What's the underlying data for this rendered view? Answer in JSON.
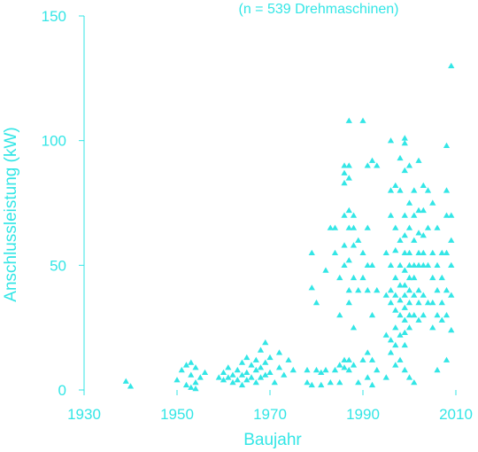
{
  "chart_data": {
    "type": "scatter",
    "subtitle": "(n = 539 Drehmaschinen)",
    "xlabel": "Baujahr",
    "ylabel": "Anschlussleistung (kW)",
    "xlim": [
      1930,
      2010
    ],
    "ylim": [
      0,
      150
    ],
    "xticks": [
      1930,
      1950,
      1970,
      1990,
      2010
    ],
    "yticks": [
      0,
      50,
      100,
      150
    ],
    "grid": false,
    "marker": "triangle",
    "color": "#33e6e6",
    "series": [
      {
        "points": [
          [
            1939,
            3.5
          ],
          [
            1940,
            1.5
          ],
          [
            1950,
            4
          ],
          [
            1951,
            8
          ],
          [
            1952,
            10
          ],
          [
            1952,
            2
          ],
          [
            1953,
            11
          ],
          [
            1953,
            6
          ],
          [
            1953,
            1
          ],
          [
            1954,
            3
          ],
          [
            1954,
            9
          ],
          [
            1954,
            0.5
          ],
          [
            1955,
            5
          ],
          [
            1956,
            7
          ],
          [
            1959,
            5
          ],
          [
            1960,
            7
          ],
          [
            1960,
            4
          ],
          [
            1961,
            9
          ],
          [
            1961,
            5
          ],
          [
            1962,
            6
          ],
          [
            1962,
            3
          ],
          [
            1963,
            8
          ],
          [
            1963,
            4
          ],
          [
            1964,
            11
          ],
          [
            1964,
            6
          ],
          [
            1964,
            2
          ],
          [
            1965,
            13
          ],
          [
            1965,
            7
          ],
          [
            1965,
            4
          ],
          [
            1966,
            10
          ],
          [
            1966,
            5
          ],
          [
            1967,
            12
          ],
          [
            1967,
            8
          ],
          [
            1967,
            3
          ],
          [
            1968,
            16
          ],
          [
            1968,
            9
          ],
          [
            1968,
            5
          ],
          [
            1969,
            19
          ],
          [
            1969,
            11
          ],
          [
            1969,
            6
          ],
          [
            1970,
            13
          ],
          [
            1970,
            7
          ],
          [
            1971,
            3
          ],
          [
            1972,
            15
          ],
          [
            1972,
            9
          ],
          [
            1973,
            6
          ],
          [
            1974,
            12
          ],
          [
            1975,
            8
          ],
          [
            1978,
            8
          ],
          [
            1978,
            3
          ],
          [
            1979,
            55
          ],
          [
            1979,
            41
          ],
          [
            1979,
            2
          ],
          [
            1980,
            35
          ],
          [
            1980,
            8
          ],
          [
            1981,
            7
          ],
          [
            1981,
            2
          ],
          [
            1982,
            48
          ],
          [
            1982,
            8
          ],
          [
            1983,
            65
          ],
          [
            1983,
            3
          ],
          [
            1984,
            55
          ],
          [
            1984,
            65
          ],
          [
            1984,
            8
          ],
          [
            1985,
            3
          ],
          [
            1985,
            45
          ],
          [
            1985,
            30
          ],
          [
            1985,
            10
          ],
          [
            1986,
            90
          ],
          [
            1986,
            87
          ],
          [
            1986,
            83
          ],
          [
            1986,
            70
          ],
          [
            1986,
            58
          ],
          [
            1986,
            50
          ],
          [
            1986,
            12
          ],
          [
            1986,
            9
          ],
          [
            1987,
            108
          ],
          [
            1987,
            90
          ],
          [
            1987,
            85
          ],
          [
            1987,
            72
          ],
          [
            1987,
            65
          ],
          [
            1987,
            52
          ],
          [
            1987,
            40
          ],
          [
            1987,
            35
          ],
          [
            1987,
            12
          ],
          [
            1987,
            8
          ],
          [
            1988,
            70
          ],
          [
            1988,
            65
          ],
          [
            1988,
            58
          ],
          [
            1988,
            45
          ],
          [
            1988,
            25
          ],
          [
            1988,
            10
          ],
          [
            1989,
            60
          ],
          [
            1989,
            40
          ],
          [
            1989,
            3
          ],
          [
            1990,
            108
          ],
          [
            1990,
            55
          ],
          [
            1990,
            45
          ],
          [
            1990,
            12
          ],
          [
            1991,
            90
          ],
          [
            1991,
            65
          ],
          [
            1991,
            50
          ],
          [
            1991,
            40
          ],
          [
            1991,
            15
          ],
          [
            1991,
            5
          ],
          [
            1992,
            92
          ],
          [
            1992,
            50
          ],
          [
            1992,
            30
          ],
          [
            1992,
            12
          ],
          [
            1992,
            2
          ],
          [
            1993,
            90
          ],
          [
            1993,
            40
          ],
          [
            1993,
            8
          ],
          [
            1995,
            55
          ],
          [
            1995,
            38
          ],
          [
            1995,
            22
          ],
          [
            1995,
            5
          ],
          [
            1996,
            100
          ],
          [
            1996,
            80
          ],
          [
            1996,
            70
          ],
          [
            1996,
            50
          ],
          [
            1996,
            40
          ],
          [
            1996,
            35
          ],
          [
            1996,
            20
          ],
          [
            1996,
            15
          ],
          [
            1997,
            82
          ],
          [
            1997,
            65
          ],
          [
            1997,
            56
          ],
          [
            1997,
            45
          ],
          [
            1997,
            38
          ],
          [
            1997,
            32
          ],
          [
            1997,
            25
          ],
          [
            1997,
            18
          ],
          [
            1997,
            10
          ],
          [
            1998,
            93
          ],
          [
            1998,
            80
          ],
          [
            1998,
            60
          ],
          [
            1998,
            50
          ],
          [
            1998,
            42
          ],
          [
            1998,
            36
          ],
          [
            1998,
            30
          ],
          [
            1998,
            22
          ],
          [
            1998,
            12
          ],
          [
            1999,
            101
          ],
          [
            1999,
            99
          ],
          [
            1999,
            88
          ],
          [
            1999,
            70
          ],
          [
            1999,
            62
          ],
          [
            1999,
            55
          ],
          [
            1999,
            48
          ],
          [
            1999,
            42
          ],
          [
            1999,
            38
          ],
          [
            1999,
            33
          ],
          [
            1999,
            28
          ],
          [
            1999,
            23
          ],
          [
            1999,
            18
          ],
          [
            1999,
            8
          ],
          [
            2000,
            90
          ],
          [
            2000,
            75
          ],
          [
            2000,
            65
          ],
          [
            2000,
            55
          ],
          [
            2000,
            50
          ],
          [
            2000,
            45
          ],
          [
            2000,
            40
          ],
          [
            2000,
            35
          ],
          [
            2000,
            30
          ],
          [
            2000,
            25
          ],
          [
            2000,
            5
          ],
          [
            2001,
            80
          ],
          [
            2001,
            70
          ],
          [
            2001,
            60
          ],
          [
            2001,
            50
          ],
          [
            2001,
            45
          ],
          [
            2001,
            38
          ],
          [
            2001,
            30
          ],
          [
            2001,
            3
          ],
          [
            2002,
            92
          ],
          [
            2002,
            72
          ],
          [
            2002,
            63
          ],
          [
            2002,
            55
          ],
          [
            2002,
            50
          ],
          [
            2002,
            40
          ],
          [
            2002,
            35
          ],
          [
            2002,
            28
          ],
          [
            2003,
            82
          ],
          [
            2003,
            72
          ],
          [
            2003,
            62
          ],
          [
            2003,
            55
          ],
          [
            2003,
            50
          ],
          [
            2003,
            38
          ],
          [
            2003,
            30
          ],
          [
            2004,
            80
          ],
          [
            2004,
            65
          ],
          [
            2004,
            50
          ],
          [
            2004,
            35
          ],
          [
            2005,
            75
          ],
          [
            2005,
            55
          ],
          [
            2005,
            45
          ],
          [
            2005,
            35
          ],
          [
            2005,
            25
          ],
          [
            2006,
            65
          ],
          [
            2006,
            50
          ],
          [
            2006,
            40
          ],
          [
            2006,
            30
          ],
          [
            2006,
            8
          ],
          [
            2007,
            55
          ],
          [
            2007,
            45
          ],
          [
            2007,
            35
          ],
          [
            2007,
            28
          ],
          [
            2008,
            98
          ],
          [
            2008,
            80
          ],
          [
            2008,
            70
          ],
          [
            2008,
            55
          ],
          [
            2008,
            40
          ],
          [
            2008,
            30
          ],
          [
            2008,
            12
          ],
          [
            2009,
            130
          ],
          [
            2009,
            70
          ],
          [
            2009,
            60
          ],
          [
            2009,
            50
          ],
          [
            2009,
            38
          ],
          [
            2009,
            24
          ]
        ]
      }
    ]
  }
}
